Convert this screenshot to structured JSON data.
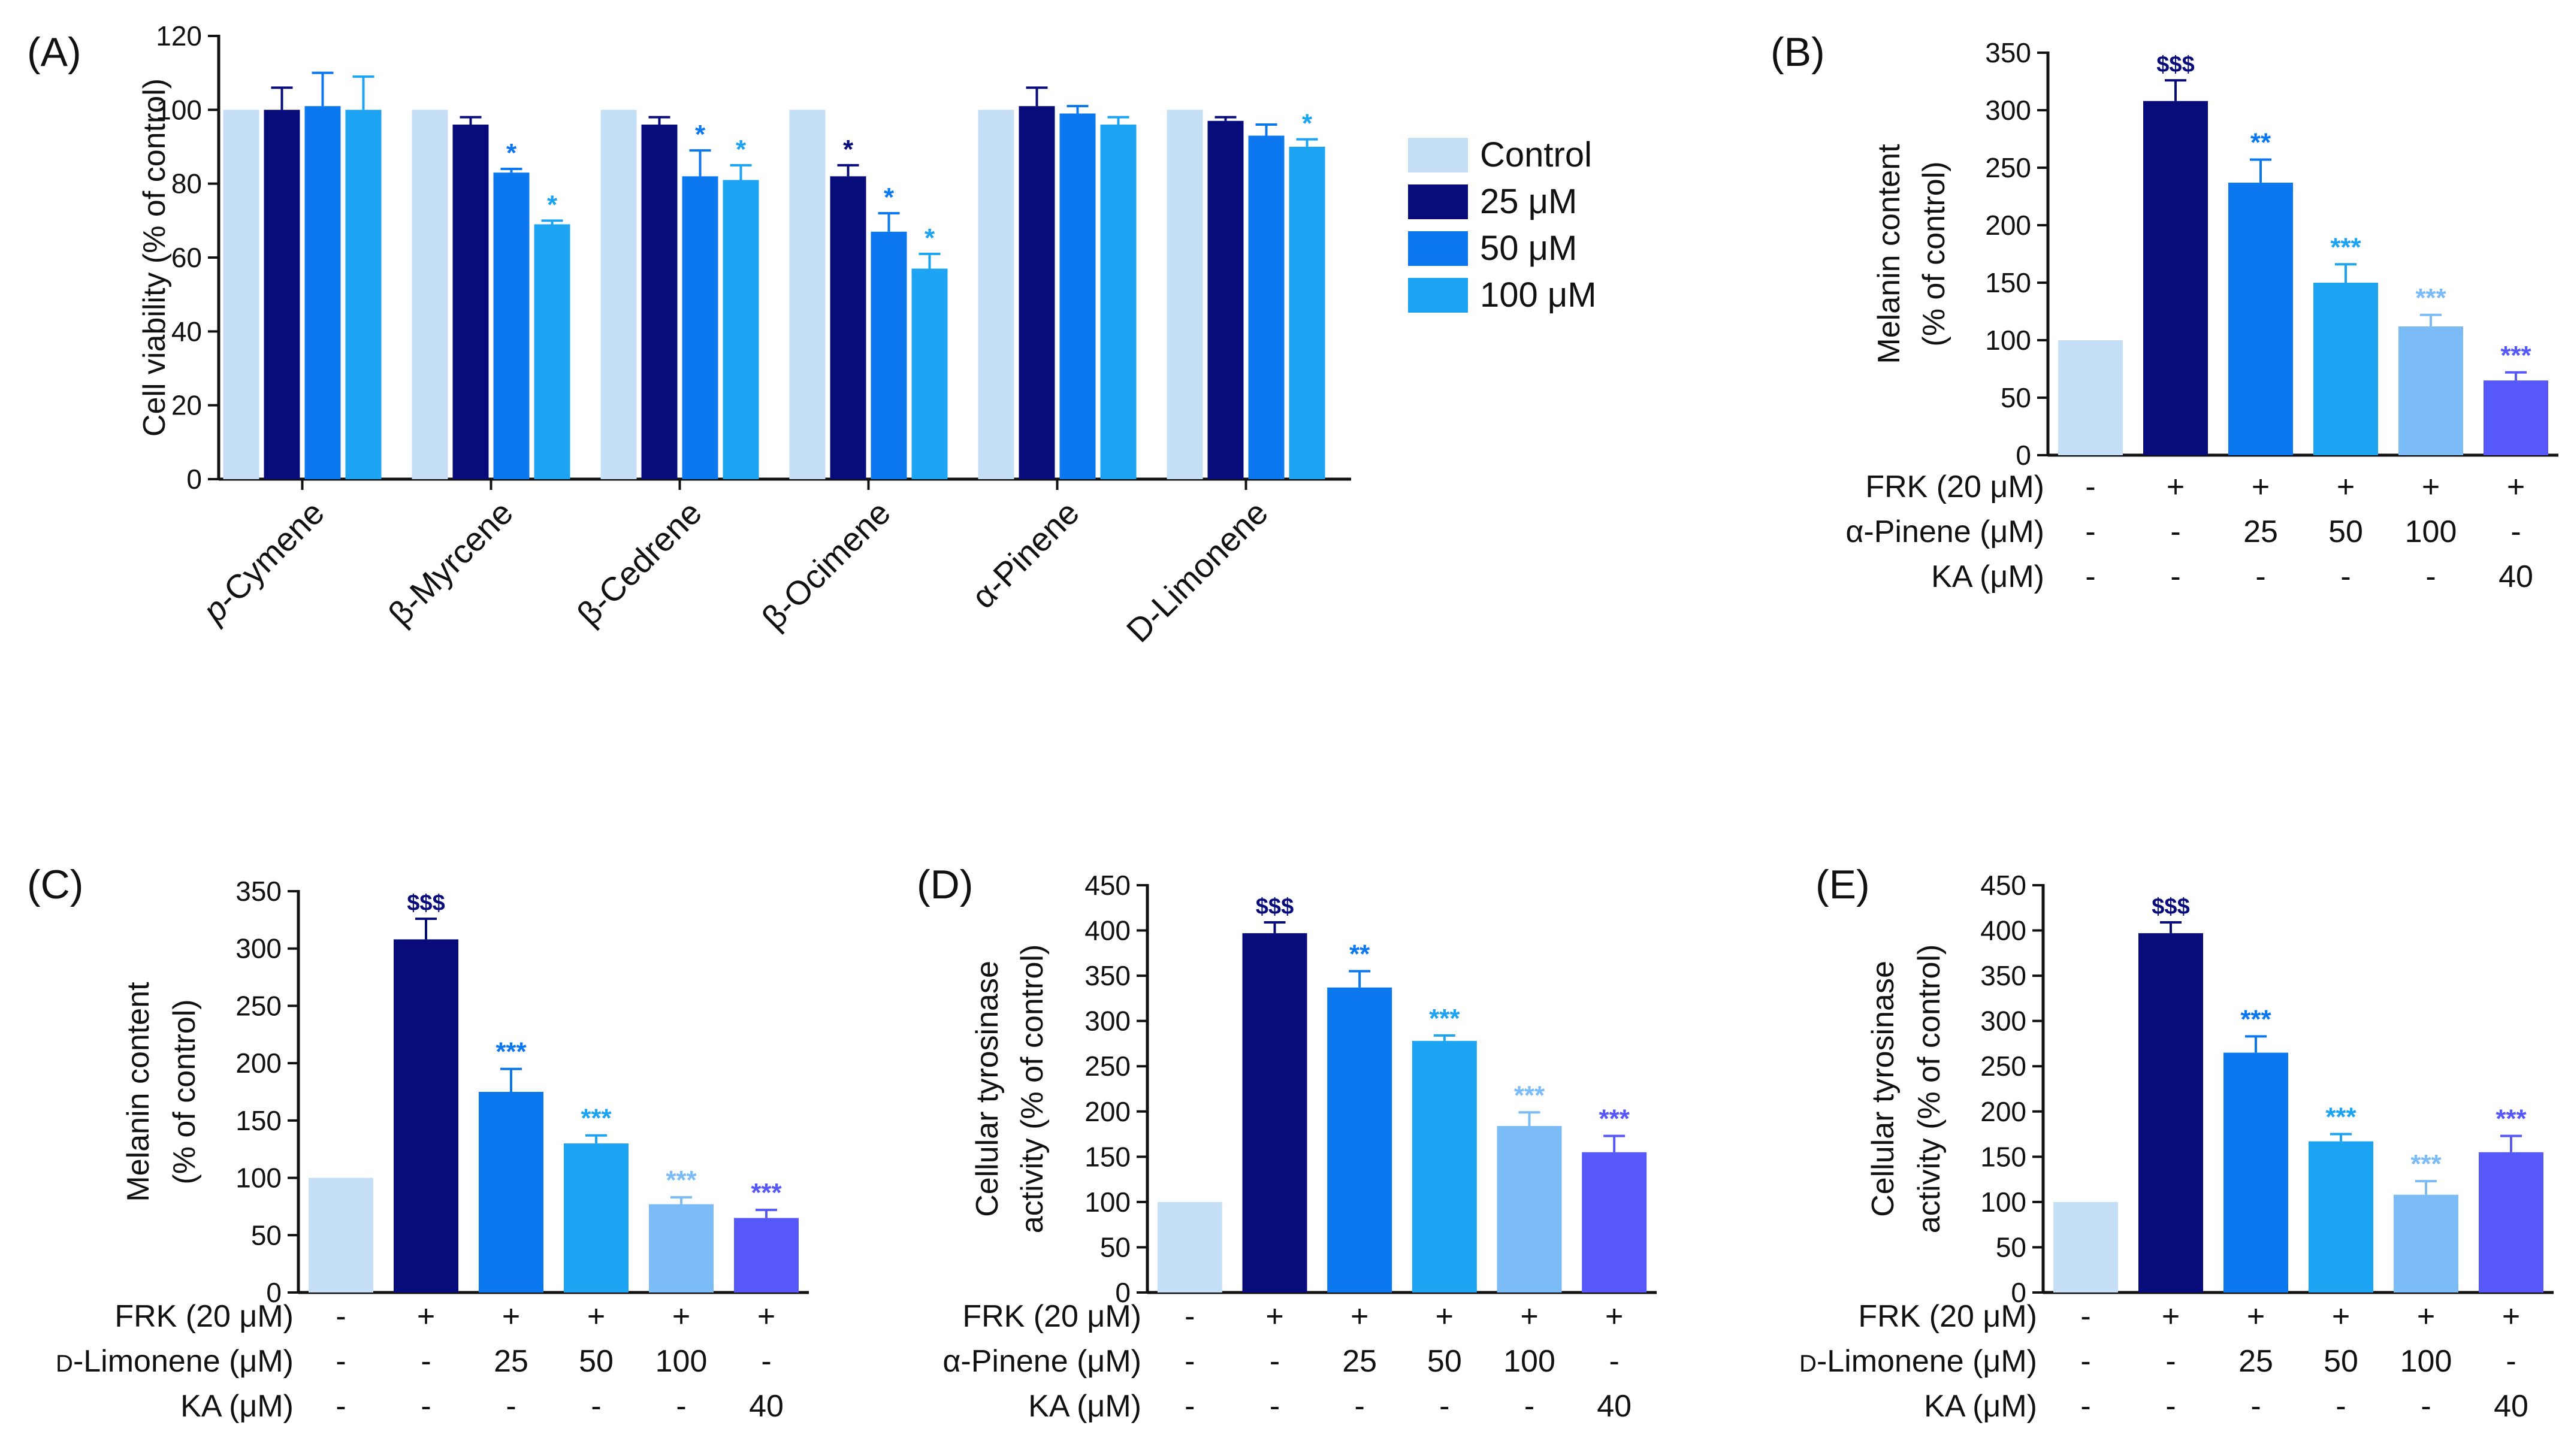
{
  "colors": {
    "control": "#c5dff6",
    "frk": "#080c7a",
    "c25": "#0b78f0",
    "c50": "#1ca3f2",
    "c100": "#7bbcf7",
    "ka": "#5658fa",
    "axis": "#111111"
  },
  "chart_data": [
    {
      "id": "A",
      "panel_label": "(A)",
      "type": "bar",
      "ylabel": "Cell viability (% of control)",
      "ylim": [
        0,
        120
      ],
      "yticks": [
        0,
        20,
        40,
        60,
        80,
        100,
        120
      ],
      "categories": [
        "p-Cymene",
        "β-Myrcene",
        "β-Cedrene",
        "β-Ocimene",
        "α-Pinene",
        "D-Limonene"
      ],
      "category_italic_prefix": [
        "p",
        "",
        "",
        "",
        "",
        ""
      ],
      "legend": [
        "Control",
        "25 μM",
        "50 μM",
        "100 μM"
      ],
      "legend_position": "right",
      "series": [
        {
          "name": "Control",
          "color_key": "control",
          "values": [
            100,
            100,
            100,
            100,
            100,
            100
          ],
          "errors": [
            0,
            0,
            0,
            0,
            0,
            0
          ],
          "sig": [
            "",
            "",
            "",
            "",
            "",
            ""
          ]
        },
        {
          "name": "25 μM",
          "color_key": "frk",
          "values": [
            100,
            96,
            96,
            82,
            101,
            97
          ],
          "errors": [
            6,
            2,
            2,
            3,
            5,
            1
          ],
          "sig": [
            "",
            "",
            "",
            "*",
            "",
            ""
          ]
        },
        {
          "name": "50 μM",
          "color_key": "c25",
          "values": [
            101,
            83,
            82,
            67,
            99,
            93
          ],
          "errors": [
            9,
            1,
            7,
            5,
            2,
            3
          ],
          "sig": [
            "",
            "*",
            "*",
            "*",
            "",
            ""
          ]
        },
        {
          "name": "100 μM",
          "color_key": "c50",
          "values": [
            100,
            69,
            81,
            57,
            96,
            90
          ],
          "errors": [
            9,
            1,
            4,
            4,
            2,
            2
          ],
          "sig": [
            "",
            "*",
            "*",
            "*",
            "",
            "*"
          ]
        }
      ]
    },
    {
      "id": "B",
      "panel_label": "(B)",
      "type": "bar",
      "ylabel": [
        "Melanin content",
        "(% of control)"
      ],
      "ylim": [
        0,
        350
      ],
      "yticks": [
        0,
        50,
        100,
        150,
        200,
        250,
        300,
        350
      ],
      "values": [
        100,
        308,
        237,
        150,
        112,
        65
      ],
      "errors": [
        0,
        18,
        20,
        16,
        10,
        7
      ],
      "sig": [
        "",
        "$$$",
        "**",
        "***",
        "***",
        "***"
      ],
      "bar_color_keys": [
        "control",
        "frk",
        "c25",
        "c50",
        "c100",
        "ka"
      ],
      "conditions": [
        {
          "label": "FRK (20 μM)",
          "values": [
            "-",
            "+",
            "+",
            "+",
            "+",
            "+"
          ]
        },
        {
          "label": "α-Pinene (μM)",
          "values": [
            "-",
            "-",
            "25",
            "50",
            "100",
            "-"
          ]
        },
        {
          "label": "KA (μM)",
          "values": [
            "-",
            "-",
            "-",
            "-",
            "-",
            "40"
          ]
        }
      ]
    },
    {
      "id": "C",
      "panel_label": "(C)",
      "type": "bar",
      "ylabel": [
        "Melanin content",
        "(% of control)"
      ],
      "ylim": [
        0,
        350
      ],
      "yticks": [
        0,
        50,
        100,
        150,
        200,
        250,
        300,
        350
      ],
      "values": [
        100,
        308,
        175,
        130,
        77,
        65
      ],
      "errors": [
        0,
        18,
        20,
        7,
        6,
        7
      ],
      "sig": [
        "",
        "$$$",
        "***",
        "***",
        "***",
        "***"
      ],
      "bar_color_keys": [
        "control",
        "frk",
        "c25",
        "c50",
        "c100",
        "ka"
      ],
      "conditions": [
        {
          "label": "FRK (20 μM)",
          "values": [
            "-",
            "+",
            "+",
            "+",
            "+",
            "+"
          ]
        },
        {
          "label": "D-Limonene (μM)",
          "values": [
            "-",
            "-",
            "25",
            "50",
            "100",
            "-"
          ]
        },
        {
          "label": "KA (μM)",
          "values": [
            "-",
            "-",
            "-",
            "-",
            "-",
            "40"
          ]
        }
      ]
    },
    {
      "id": "D",
      "panel_label": "(D)",
      "type": "bar",
      "ylabel": [
        "Cellular tyrosinase",
        "activity (% of control)"
      ],
      "ylim": [
        0,
        450
      ],
      "yticks": [
        0,
        50,
        100,
        150,
        200,
        250,
        300,
        350,
        400,
        450
      ],
      "values": [
        100,
        397,
        337,
        278,
        184,
        155
      ],
      "errors": [
        0,
        12,
        18,
        6,
        15,
        18
      ],
      "sig": [
        "",
        "$$$",
        "**",
        "***",
        "***",
        "***"
      ],
      "bar_color_keys": [
        "control",
        "frk",
        "c25",
        "c50",
        "c100",
        "ka"
      ],
      "conditions": [
        {
          "label": "FRK (20 μM)",
          "values": [
            "-",
            "+",
            "+",
            "+",
            "+",
            "+"
          ]
        },
        {
          "label": "α-Pinene (μM)",
          "values": [
            "-",
            "-",
            "25",
            "50",
            "100",
            "-"
          ]
        },
        {
          "label": "KA (μM)",
          "values": [
            "-",
            "-",
            "-",
            "-",
            "-",
            "40"
          ]
        }
      ]
    },
    {
      "id": "E",
      "panel_label": "(E)",
      "type": "bar",
      "ylabel": [
        "Cellular tyrosinase",
        "activity (% of control)"
      ],
      "ylim": [
        0,
        450
      ],
      "yticks": [
        0,
        50,
        100,
        150,
        200,
        250,
        300,
        350,
        400,
        450
      ],
      "values": [
        100,
        397,
        265,
        167,
        108,
        155
      ],
      "errors": [
        0,
        12,
        18,
        8,
        15,
        18
      ],
      "sig": [
        "",
        "$$$",
        "***",
        "***",
        "***",
        "***"
      ],
      "bar_color_keys": [
        "control",
        "frk",
        "c25",
        "c50",
        "c100",
        "ka"
      ],
      "conditions": [
        {
          "label": "FRK (20 μM)",
          "values": [
            "-",
            "+",
            "+",
            "+",
            "+",
            "+"
          ]
        },
        {
          "label": "D-Limonene (μM)",
          "values": [
            "-",
            "-",
            "25",
            "50",
            "100",
            "-"
          ]
        },
        {
          "label": "KA (μM)",
          "values": [
            "-",
            "-",
            "-",
            "-",
            "-",
            "40"
          ]
        }
      ]
    }
  ]
}
